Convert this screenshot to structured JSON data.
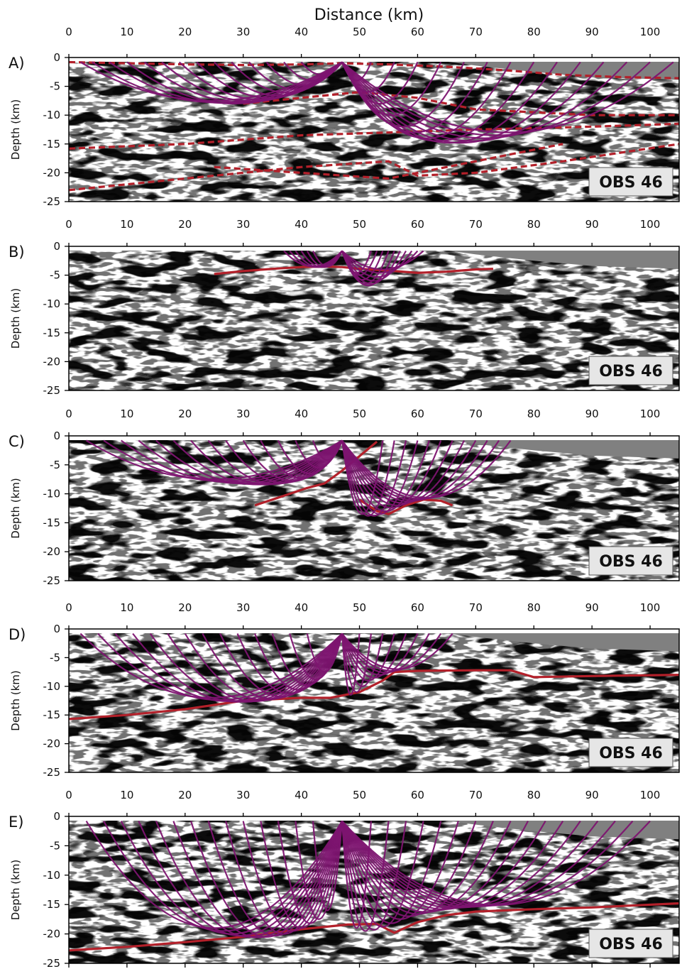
{
  "figure": {
    "top_xlabel": "Distance (km)",
    "ylabel": "Depth (km)",
    "station_label": "OBS 46",
    "x_ticks": [
      0,
      10,
      20,
      30,
      40,
      50,
      60,
      70,
      80,
      90,
      100
    ],
    "y_ticks": [
      0,
      -5,
      -10,
      -15,
      -20,
      -25
    ],
    "xlim": [
      0,
      105
    ],
    "ylim": [
      -25,
      0
    ],
    "colors": {
      "ray_path": "#7d1470",
      "interface": "#b3202a",
      "water": "#808080",
      "label_box": "#e6e6e6"
    }
  },
  "chart_data": [
    {
      "panel": "A)",
      "type": "line",
      "obs_x": 47,
      "interface_style": "dashed",
      "interfaces": [
        {
          "x": [
            0,
            10,
            20,
            30,
            40,
            47,
            55,
            65,
            75,
            85,
            95,
            105
          ],
          "y": [
            -0.8,
            -1,
            -1.2,
            -1.3,
            -1.2,
            -1,
            -1.2,
            -1.6,
            -2.2,
            -3,
            -3.4,
            -3.6
          ]
        },
        {
          "x": [
            0,
            20,
            40,
            55,
            70,
            90,
            105
          ],
          "y": [
            -15.8,
            -15,
            -13.5,
            -13,
            -12.5,
            -12,
            -11.5
          ]
        },
        {
          "x": [
            0,
            20,
            40,
            55,
            60,
            70,
            85,
            105
          ],
          "y": [
            -23,
            -21,
            -19,
            -18,
            -20.5,
            -20,
            -18,
            -15
          ]
        },
        {
          "x": [
            30,
            40,
            50,
            60,
            70,
            90,
            105
          ],
          "y": [
            -8,
            -7,
            -6,
            -7,
            -9,
            -10,
            -10
          ]
        },
        {
          "x": [
            25,
            40,
            55,
            70,
            85
          ],
          "y": [
            -19,
            -20,
            -21,
            -18,
            -15
          ]
        }
      ],
      "rays": [
        {
          "x_end": 2,
          "turn_depth": -7.5
        },
        {
          "x_end": 4,
          "turn_depth": -7.8
        },
        {
          "x_end": 7,
          "turn_depth": -7.9
        },
        {
          "x_end": 10,
          "turn_depth": -8
        },
        {
          "x_end": 13,
          "turn_depth": -7.8
        },
        {
          "x_end": 16,
          "turn_depth": -7.6
        },
        {
          "x_end": 19,
          "turn_depth": -7.3
        },
        {
          "x_end": 22,
          "turn_depth": -7
        },
        {
          "x_end": 25,
          "turn_depth": -6.6
        },
        {
          "x_end": 28,
          "turn_depth": -6.1
        },
        {
          "x_end": 31,
          "turn_depth": -5.5
        },
        {
          "x_end": 34,
          "turn_depth": -4.8
        },
        {
          "x_end": 37,
          "turn_depth": -4
        },
        {
          "x_end": 40,
          "turn_depth": -3
        },
        {
          "x_end": 52,
          "turn_depth": -4
        },
        {
          "x_end": 56,
          "turn_depth": -6
        },
        {
          "x_end": 60,
          "turn_depth": -8
        },
        {
          "x_end": 64,
          "turn_depth": -10
        },
        {
          "x_end": 68,
          "turn_depth": -12
        },
        {
          "x_end": 72,
          "turn_depth": -13
        },
        {
          "x_end": 76,
          "turn_depth": -14
        },
        {
          "x_end": 80,
          "turn_depth": -14.5
        },
        {
          "x_end": 84,
          "turn_depth": -14.8
        },
        {
          "x_end": 88,
          "turn_depth": -14.8
        },
        {
          "x_end": 92,
          "turn_depth": -14.5
        },
        {
          "x_end": 96,
          "turn_depth": -14
        },
        {
          "x_end": 100,
          "turn_depth": -13.5
        },
        {
          "x_end": 104,
          "turn_depth": -13
        }
      ]
    },
    {
      "panel": "B)",
      "type": "line",
      "obs_x": 47,
      "interface_style": "solid",
      "interfaces": [
        {
          "x": [
            25,
            30,
            35,
            40,
            44,
            47,
            50,
            55,
            60,
            65,
            70,
            73
          ],
          "y": [
            -4.8,
            -4.3,
            -3.9,
            -3.6,
            -3.5,
            -3.6,
            -3.9,
            -4.2,
            -4.6,
            -4.4,
            -4,
            -3.9
          ]
        }
      ],
      "rays": [
        {
          "x_end": 37,
          "turn_depth": -3.5
        },
        {
          "x_end": 38,
          "turn_depth": -3.6
        },
        {
          "x_end": 39,
          "turn_depth": -3.6
        },
        {
          "x_end": 40,
          "turn_depth": -3.6
        },
        {
          "x_end": 41,
          "turn_depth": -3.6
        },
        {
          "x_end": 42,
          "turn_depth": -3.5
        },
        {
          "x_end": 52,
          "turn_depth": -4.6
        },
        {
          "x_end": 53,
          "turn_depth": -5
        },
        {
          "x_end": 54,
          "turn_depth": -5.8
        },
        {
          "x_end": 55,
          "turn_depth": -6.5
        },
        {
          "x_end": 56,
          "turn_depth": -6.8
        },
        {
          "x_end": 57,
          "turn_depth": -6.5
        },
        {
          "x_end": 58,
          "turn_depth": -6
        },
        {
          "x_end": 59,
          "turn_depth": -5.3
        },
        {
          "x_end": 60,
          "turn_depth": -4.6
        },
        {
          "x_end": 61,
          "turn_depth": -4
        }
      ]
    },
    {
      "panel": "C)",
      "type": "line",
      "obs_x": 47,
      "interface_style": "solid",
      "interfaces": [
        {
          "x": [
            32,
            35,
            38,
            41,
            44,
            47,
            50,
            53
          ],
          "y": [
            -12,
            -11,
            -10,
            -9,
            -8.2,
            -6,
            -3.5,
            -1
          ]
        },
        {
          "x": [
            50,
            53,
            55,
            58,
            61,
            64,
            66
          ],
          "y": [
            -11,
            -13,
            -13.5,
            -12,
            -11,
            -11.2,
            -12
          ]
        }
      ],
      "rays": [
        {
          "x_end": 3,
          "turn_depth": -7.5
        },
        {
          "x_end": 6,
          "turn_depth": -7.8
        },
        {
          "x_end": 9,
          "turn_depth": -8
        },
        {
          "x_end": 12,
          "turn_depth": -8.2
        },
        {
          "x_end": 15,
          "turn_depth": -8.3
        },
        {
          "x_end": 18,
          "turn_depth": -8.4
        },
        {
          "x_end": 21,
          "turn_depth": -8.4
        },
        {
          "x_end": 24,
          "turn_depth": -8.3
        },
        {
          "x_end": 27,
          "turn_depth": -8.1
        },
        {
          "x_end": 30,
          "turn_depth": -7.8
        },
        {
          "x_end": 33,
          "turn_depth": -7.3
        },
        {
          "x_end": 36,
          "turn_depth": -6.5
        },
        {
          "x_end": 39,
          "turn_depth": -5.5
        },
        {
          "x_end": 42,
          "turn_depth": -4.2
        },
        {
          "x_end": 54,
          "turn_depth": -13.5
        },
        {
          "x_end": 56,
          "turn_depth": -13.8
        },
        {
          "x_end": 58,
          "turn_depth": -13.8
        },
        {
          "x_end": 60,
          "turn_depth": -13.5
        },
        {
          "x_end": 62,
          "turn_depth": -13
        },
        {
          "x_end": 64,
          "turn_depth": -12.4
        },
        {
          "x_end": 66,
          "turn_depth": -12
        },
        {
          "x_end": 68,
          "turn_depth": -11.6
        },
        {
          "x_end": 70,
          "turn_depth": -11.3
        },
        {
          "x_end": 72,
          "turn_depth": -11.1
        },
        {
          "x_end": 74,
          "turn_depth": -10.9
        },
        {
          "x_end": 76,
          "turn_depth": -10.7
        }
      ]
    },
    {
      "panel": "D)",
      "type": "line",
      "obs_x": 47,
      "interface_style": "solid",
      "interfaces": [
        {
          "x": [
            0,
            10,
            20,
            30,
            40,
            45,
            50,
            54,
            56,
            60,
            70,
            76,
            80,
            90,
            105
          ],
          "y": [
            -15.7,
            -15,
            -14,
            -12.5,
            -12,
            -12,
            -11,
            -9,
            -7.5,
            -7.3,
            -7.2,
            -7.2,
            -8.4,
            -8.2,
            -8
          ]
        }
      ],
      "rays": [
        {
          "x_end": 2,
          "turn_depth": -12
        },
        {
          "x_end": 5,
          "turn_depth": -12.4
        },
        {
          "x_end": 8,
          "turn_depth": -12.6
        },
        {
          "x_end": 11,
          "turn_depth": -12.7
        },
        {
          "x_end": 14,
          "turn_depth": -12.7
        },
        {
          "x_end": 17,
          "turn_depth": -12.6
        },
        {
          "x_end": 20,
          "turn_depth": -12.4
        },
        {
          "x_end": 23,
          "turn_depth": -12.2
        },
        {
          "x_end": 26,
          "turn_depth": -11.8
        },
        {
          "x_end": 29,
          "turn_depth": -11.3
        },
        {
          "x_end": 32,
          "turn_depth": -10.6
        },
        {
          "x_end": 35,
          "turn_depth": -9.8
        },
        {
          "x_end": 38,
          "turn_depth": -8.8
        },
        {
          "x_end": 41,
          "turn_depth": -7.5
        },
        {
          "x_end": 50,
          "turn_depth": -11.5
        },
        {
          "x_end": 52,
          "turn_depth": -11
        },
        {
          "x_end": 54,
          "turn_depth": -10
        },
        {
          "x_end": 56,
          "turn_depth": -9
        },
        {
          "x_end": 58,
          "turn_depth": -8.5
        },
        {
          "x_end": 60,
          "turn_depth": -8
        },
        {
          "x_end": 62,
          "turn_depth": -7.6
        },
        {
          "x_end": 64,
          "turn_depth": -7.3
        },
        {
          "x_end": 66,
          "turn_depth": -7
        }
      ]
    },
    {
      "panel": "E)",
      "type": "line",
      "obs_x": 47,
      "interface_style": "solid",
      "interfaces": [
        {
          "x": [
            0,
            10,
            20,
            30,
            40,
            48,
            53,
            56,
            60,
            65,
            70,
            80,
            90,
            105
          ],
          "y": [
            -22.8,
            -22.2,
            -21.4,
            -20.5,
            -19.2,
            -18.4,
            -18.3,
            -19.8,
            -18,
            -16.8,
            -16.2,
            -15.8,
            -15.5,
            -14.8
          ]
        }
      ],
      "rays": [
        {
          "x_end": 3,
          "turn_depth": -19
        },
        {
          "x_end": 6,
          "turn_depth": -19.5
        },
        {
          "x_end": 9,
          "turn_depth": -20
        },
        {
          "x_end": 12,
          "turn_depth": -20.3
        },
        {
          "x_end": 15,
          "turn_depth": -20.5
        },
        {
          "x_end": 18,
          "turn_depth": -20.6
        },
        {
          "x_end": 21,
          "turn_depth": -20.5
        },
        {
          "x_end": 24,
          "turn_depth": -20.3
        },
        {
          "x_end": 27,
          "turn_depth": -20
        },
        {
          "x_end": 30,
          "turn_depth": -19.5
        },
        {
          "x_end": 33,
          "turn_depth": -19
        },
        {
          "x_end": 36,
          "turn_depth": -18.2
        },
        {
          "x_end": 39,
          "turn_depth": -17.5
        },
        {
          "x_end": 42,
          "turn_depth": -16
        },
        {
          "x_end": 52,
          "turn_depth": -19
        },
        {
          "x_end": 55,
          "turn_depth": -19.5
        },
        {
          "x_end": 58,
          "turn_depth": -19.3
        },
        {
          "x_end": 61,
          "turn_depth": -18.8
        },
        {
          "x_end": 64,
          "turn_depth": -18.2
        },
        {
          "x_end": 67,
          "turn_depth": -17.5
        },
        {
          "x_end": 70,
          "turn_depth": -17
        },
        {
          "x_end": 73,
          "turn_depth": -16.6
        },
        {
          "x_end": 76,
          "turn_depth": -16.3
        },
        {
          "x_end": 79,
          "turn_depth": -16
        },
        {
          "x_end": 82,
          "turn_depth": -15.8
        },
        {
          "x_end": 85,
          "turn_depth": -15.6
        },
        {
          "x_end": 88,
          "turn_depth": -15.5
        },
        {
          "x_end": 91,
          "turn_depth": -15.4
        },
        {
          "x_end": 94,
          "turn_depth": -15.3
        },
        {
          "x_end": 97,
          "turn_depth": -15.2
        },
        {
          "x_end": 100,
          "turn_depth": -15.1
        }
      ]
    }
  ]
}
